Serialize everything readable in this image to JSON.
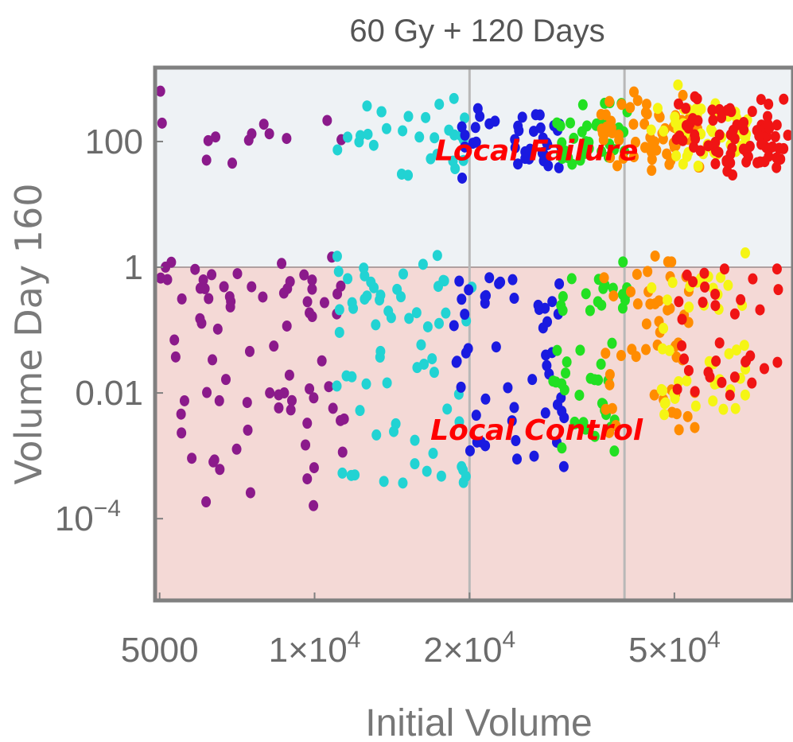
{
  "chart_data": {
    "type": "scatter",
    "title": "60 Gy + 120 Days",
    "xlabel": "Initial Volume",
    "ylabel": "Volume Day   160",
    "xscale": "log",
    "yscale": "log",
    "xlim": [
      4900,
      85000
    ],
    "ylim": [
      5e-06,
      1500
    ],
    "x_ticks": [
      {
        "value": 5000,
        "label": "5000"
      },
      {
        "value": 10000,
        "label": "1×10",
        "exp": "4"
      },
      {
        "value": 20000,
        "label": "2×10",
        "exp": "4"
      },
      {
        "value": 50000,
        "label": "5×10",
        "exp": "4"
      }
    ],
    "y_ticks": [
      {
        "value": 100,
        "label": "100",
        "exp": ""
      },
      {
        "value": 1,
        "label": "1",
        "exp": ""
      },
      {
        "value": 0.01,
        "label": "0.01",
        "exp": ""
      },
      {
        "value": 0.0001,
        "label": "10",
        "exp": "−4"
      }
    ],
    "regions": [
      {
        "name": "Local Failure",
        "from": 1,
        "to": 1500,
        "color": "#eef2f5"
      },
      {
        "name": "Local Control",
        "from": 5e-06,
        "to": 1,
        "color": "#f4d9d6"
      }
    ],
    "threshold_y": 1,
    "vertical_gridlines_x": [
      20000,
      40000
    ],
    "annotations": [
      {
        "text": "Local Failure",
        "x": 27000,
        "y": 50
      },
      {
        "text": "Local Control",
        "x": 27000,
        "y": 0.0018
      }
    ],
    "point_color_bands": [
      {
        "color": "#8b1a8b",
        "x_min": 5000,
        "x_max": 11500
      },
      {
        "color": "#22d3d3",
        "x_min": 11000,
        "x_max": 20500
      },
      {
        "color": "#1a1ae0",
        "x_min": 18500,
        "x_max": 31000
      },
      {
        "color": "#22e022",
        "x_min": 29000,
        "x_max": 40500
      },
      {
        "color": "#ff8c00",
        "x_min": 36000,
        "x_max": 56000
      },
      {
        "color": "#f5f514",
        "x_min": 45000,
        "x_max": 70000
      },
      {
        "color": "#f01414",
        "x_min": 50000,
        "x_max": 85000
      }
    ],
    "grid": "vertical-only"
  }
}
